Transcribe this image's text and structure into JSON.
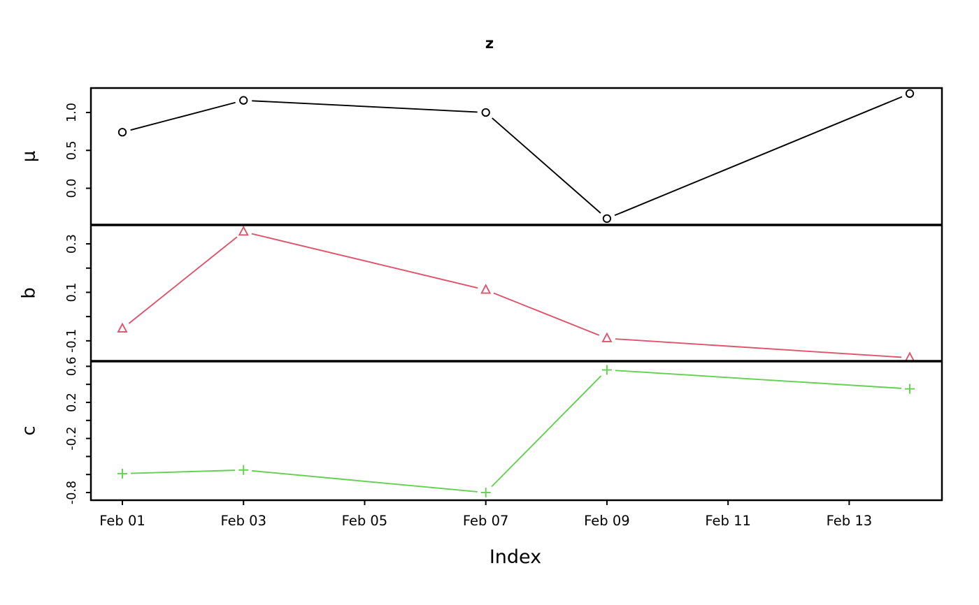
{
  "chart_data": {
    "type": "line",
    "title": "z",
    "xlabel": "Index",
    "description": "Three stacked time-series panels (R zoo-style plot) sharing one x axis of February dates",
    "x_days": [
      1,
      3,
      7,
      9,
      14
    ],
    "x_ticks": [
      {
        "day": 1,
        "label": "Feb 01"
      },
      {
        "day": 3,
        "label": "Feb 03"
      },
      {
        "day": 5,
        "label": "Feb 05"
      },
      {
        "day": 7,
        "label": "Feb 07"
      },
      {
        "day": 9,
        "label": "Feb 09"
      },
      {
        "day": 11,
        "label": "Feb 11"
      },
      {
        "day": 13,
        "label": "Feb 13"
      }
    ],
    "xlim_days": [
      0.48,
      14.53
    ],
    "grid": false,
    "legend": "none",
    "panels": [
      {
        "id": "mu",
        "ylabel": "μ",
        "ylim": [
          -0.484,
          1.323
        ],
        "yticks": [
          {
            "v": 0.0,
            "label": "0.0"
          },
          {
            "v": 0.5,
            "label": "0.5"
          },
          {
            "v": 1.0,
            "label": "1.0"
          }
        ],
        "series": {
          "name": "μ",
          "color": "#000000",
          "marker": "circle",
          "values": [
            0.74,
            1.16,
            1.0,
            -0.4,
            1.25
          ]
        }
      },
      {
        "id": "b",
        "ylabel": "b",
        "ylim": [
          -0.184,
          0.378
        ],
        "yticks": [
          {
            "v": -0.1,
            "label": "-0.1"
          },
          {
            "v": 0.0,
            "label": ""
          },
          {
            "v": 0.1,
            "label": "0.1"
          },
          {
            "v": 0.2,
            "label": ""
          },
          {
            "v": 0.3,
            "label": "0.3"
          }
        ],
        "series": {
          "name": "b",
          "color": "#DF536B",
          "marker": "triangle",
          "values": [
            -0.05,
            0.35,
            0.11,
            -0.09,
            -0.17
          ]
        }
      },
      {
        "id": "c",
        "ylabel": "c",
        "ylim": [
          -0.885,
          0.657
        ],
        "yticks": [
          {
            "v": -0.8,
            "label": "-0.8"
          },
          {
            "v": -0.6,
            "label": ""
          },
          {
            "v": -0.4,
            "label": ""
          },
          {
            "v": -0.2,
            "label": "-0.2"
          },
          {
            "v": 0.0,
            "label": ""
          },
          {
            "v": 0.2,
            "label": "0.2"
          },
          {
            "v": 0.4,
            "label": ""
          },
          {
            "v": 0.6,
            "label": "0.6"
          }
        ],
        "series": {
          "name": "c",
          "color": "#61D04F",
          "marker": "plus",
          "values": [
            -0.59,
            -0.55,
            -0.8,
            0.56,
            0.35
          ]
        }
      }
    ]
  }
}
